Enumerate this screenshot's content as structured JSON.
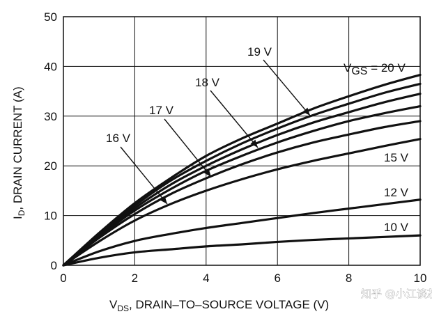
{
  "chart_data": {
    "type": "line",
    "title": "",
    "xlabel": "DS, DRAIN–TO–SOURCE VOLTAGE (V)",
    "xlabel_prefix": "V",
    "xlabel_sub": "DS",
    "xlabel_rest": ", DRAIN–TO–SOURCE VOLTAGE (V)",
    "ylabel_prefix": "I",
    "ylabel_sub": "D",
    "ylabel_rest": ", DRAIN CURRENT (A)",
    "xlim": [
      0,
      10
    ],
    "ylim": [
      0,
      50
    ],
    "x_ticks": [
      "0",
      "2",
      "4",
      "6",
      "8",
      "10"
    ],
    "y_ticks": [
      "0",
      "10",
      "20",
      "30",
      "40",
      "50"
    ],
    "grid": true,
    "legend": "none (curves labeled inline)",
    "x": [
      0,
      1,
      2,
      3,
      4,
      5,
      6,
      7,
      8,
      9,
      10
    ],
    "series": [
      {
        "name": "VGS = 20 V",
        "values": [
          0,
          6.5,
          12.5,
          17.5,
          22,
          25.5,
          28.5,
          31.5,
          34,
          36.3,
          38.3
        ]
      },
      {
        "name": "19 V",
        "values": [
          0,
          6.3,
          12,
          17,
          21,
          24.5,
          27.5,
          30.2,
          32.5,
          34.7,
          36.5
        ]
      },
      {
        "name": "18 V",
        "values": [
          0,
          6.1,
          11.5,
          16.2,
          20,
          23.3,
          26.2,
          28.7,
          30.8,
          32.8,
          34.5
        ]
      },
      {
        "name": "17 V",
        "values": [
          0,
          5.8,
          11,
          15.3,
          19,
          22,
          24.7,
          27,
          29,
          30.6,
          32
        ]
      },
      {
        "name": "16 V",
        "values": [
          0,
          5.5,
          10.3,
          14.3,
          17.5,
          20.3,
          22.7,
          24.7,
          26.3,
          27.8,
          29
        ]
      },
      {
        "name": "15 V",
        "values": [
          0,
          4.8,
          9,
          12.3,
          15,
          17.3,
          19.3,
          21,
          22.5,
          24,
          25.4
        ]
      },
      {
        "name": "12 V",
        "values": [
          0,
          2.8,
          4.9,
          6.3,
          7.5,
          8.5,
          9.5,
          10.5,
          11.4,
          12.3,
          13.2
        ]
      },
      {
        "name": "10 V",
        "values": [
          0,
          1.5,
          2.6,
          3.2,
          3.8,
          4.2,
          4.7,
          5.1,
          5.4,
          5.7,
          6
        ]
      }
    ],
    "annotations": {
      "vgs_label_prefix": "V",
      "vgs_label_sub": "GS",
      "vgs_label_rest": " = 20 V",
      "label_19": "19 V",
      "label_18": "18 V",
      "label_17": "17 V",
      "label_16": "16 V",
      "label_15": "15 V",
      "label_12": "12 V",
      "label_10": "10 V"
    }
  },
  "watermark": "知乎 @小江谈芯"
}
